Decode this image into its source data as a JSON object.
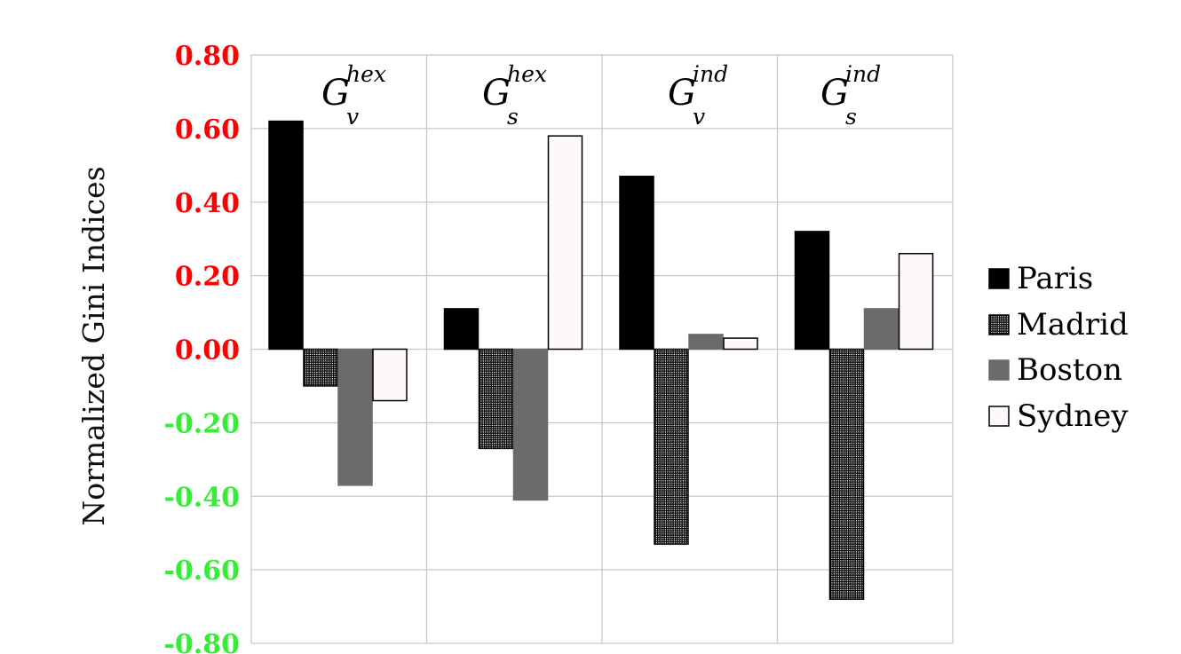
{
  "chart_data": {
    "type": "bar",
    "ylabel": "Normalized Gini Indices",
    "xlabel": "",
    "ylim": [
      -0.8,
      0.8
    ],
    "yticks": [
      "0.80",
      "0.60",
      "0.40",
      "0.20",
      "0.00",
      "-0.20",
      "-0.40",
      "-0.60",
      "-0.80"
    ],
    "ytick_colors": {
      "positive": "#ff0000",
      "zero": "#ff0000",
      "negative": "#33ee33"
    },
    "categories": [
      {
        "main": "G",
        "sup": "hex",
        "sub": "v"
      },
      {
        "main": "G",
        "sup": "hex",
        "sub": "s"
      },
      {
        "main": "G",
        "sup": "ind",
        "sub": "v"
      },
      {
        "main": "G",
        "sup": "ind",
        "sub": "s"
      }
    ],
    "series": [
      {
        "name": "Paris",
        "style": "solid-black",
        "values": [
          0.62,
          0.11,
          0.47,
          0.32
        ]
      },
      {
        "name": "Madrid",
        "style": "crosshatch",
        "values": [
          -0.1,
          -0.27,
          -0.53,
          -0.68
        ]
      },
      {
        "name": "Boston",
        "style": "solid-gray",
        "values": [
          -0.37,
          -0.41,
          0.04,
          0.11
        ]
      },
      {
        "name": "Sydney",
        "style": "white-outline",
        "values": [
          -0.14,
          0.58,
          0.03,
          0.26
        ]
      }
    ],
    "grid": true,
    "legend_position": "right"
  }
}
